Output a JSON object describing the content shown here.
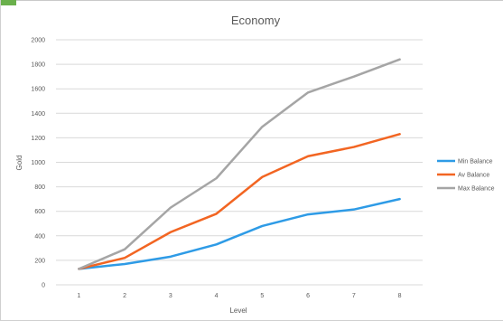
{
  "chart_data": {
    "type": "line",
    "title": "Economy",
    "xlabel": "Level",
    "ylabel": "Gold",
    "x": [
      1,
      2,
      3,
      4,
      5,
      6,
      7,
      8
    ],
    "ylim": [
      0,
      2000
    ],
    "yticks": [
      0,
      200,
      400,
      600,
      800,
      1000,
      1200,
      1400,
      1600,
      1800,
      2000
    ],
    "grid": true,
    "legend": "right",
    "series": [
      {
        "name": "Min Balance",
        "color": "#2e9be6",
        "values": [
          130,
          170,
          230,
          330,
          480,
          575,
          615,
          700
        ]
      },
      {
        "name": "Av Balance",
        "color": "#f26522",
        "values": [
          130,
          220,
          430,
          580,
          880,
          1050,
          1125,
          1230
        ]
      },
      {
        "name": "Max Balance",
        "color": "#a5a5a5",
        "values": [
          130,
          290,
          630,
          870,
          1290,
          1570,
          1700,
          1840
        ]
      }
    ]
  }
}
